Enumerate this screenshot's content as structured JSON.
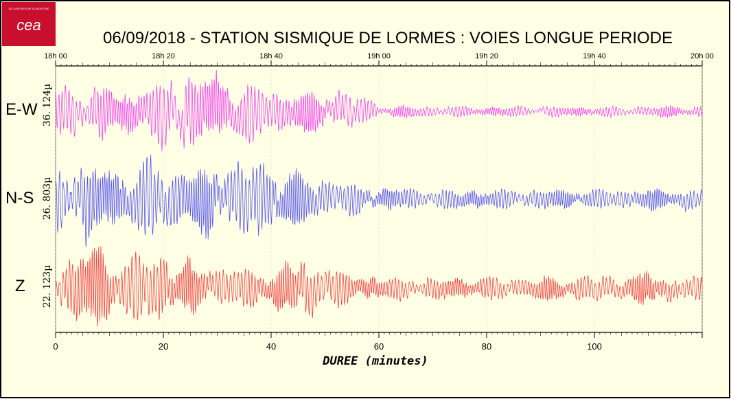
{
  "logo": {
    "text": "cea",
    "small_text": "DE LA RECHERCHE À L'INDUSTRIE",
    "color": "#c8102e"
  },
  "title": "06/09/2018  -  STATION SISMIQUE DE LORMES : VOIES LONGUE PERIODE",
  "chart_data": {
    "type": "line",
    "title": "06/09/2018  -  STATION SISMIQUE DE LORMES : VOIES LONGUE PERIODE",
    "xlabel": "DUREE (minutes)",
    "xlim": [
      0,
      120
    ],
    "x_ticks": [
      0,
      20,
      40,
      60,
      80,
      100
    ],
    "time_ticks": [
      "18h 00",
      "18h 20",
      "18h 40",
      "19h 00",
      "19h 20",
      "19h 40",
      "20h 00"
    ],
    "grid": true,
    "series": [
      {
        "name": "E-W",
        "scale_label": "36. 124µ",
        "color": "#ee44ee",
        "description_values": {
          "amplitude_envelope": [
            [
              0,
              0.55
            ],
            [
              5,
              0.6
            ],
            [
              10,
              0.55
            ],
            [
              15,
              0.6
            ],
            [
              20,
              0.8
            ],
            [
              25,
              0.95
            ],
            [
              30,
              0.7
            ],
            [
              35,
              0.8
            ],
            [
              38,
              0.6
            ],
            [
              45,
              0.5
            ],
            [
              55,
              0.45
            ],
            [
              58,
              0.25
            ],
            [
              60,
              0.15
            ],
            [
              80,
              0.12
            ],
            [
              100,
              0.12
            ],
            [
              120,
              0.14
            ]
          ]
        }
      },
      {
        "name": "N-S",
        "scale_label": "26. 803µ",
        "color": "#5555ee",
        "description_values": {
          "amplitude_envelope": [
            [
              0,
              0.6
            ],
            [
              2,
              0.95
            ],
            [
              10,
              0.7
            ],
            [
              18,
              0.85
            ],
            [
              25,
              0.7
            ],
            [
              37,
              0.9
            ],
            [
              42,
              0.75
            ],
            [
              50,
              0.45
            ],
            [
              60,
              0.25
            ],
            [
              80,
              0.22
            ],
            [
              100,
              0.22
            ],
            [
              120,
              0.25
            ]
          ]
        }
      },
      {
        "name": "Z",
        "scale_label": "22. 123µ",
        "color": "#ee4444",
        "description_values": {
          "amplitude_envelope": [
            [
              0,
              0.55
            ],
            [
              8,
              0.95
            ],
            [
              12,
              0.6
            ],
            [
              19,
              0.95
            ],
            [
              22,
              0.55
            ],
            [
              30,
              0.5
            ],
            [
              38,
              0.4
            ],
            [
              48,
              0.7
            ],
            [
              52,
              0.4
            ],
            [
              60,
              0.25
            ],
            [
              80,
              0.25
            ],
            [
              100,
              0.28
            ],
            [
              110,
              0.35
            ],
            [
              120,
              0.25
            ]
          ]
        }
      }
    ]
  }
}
